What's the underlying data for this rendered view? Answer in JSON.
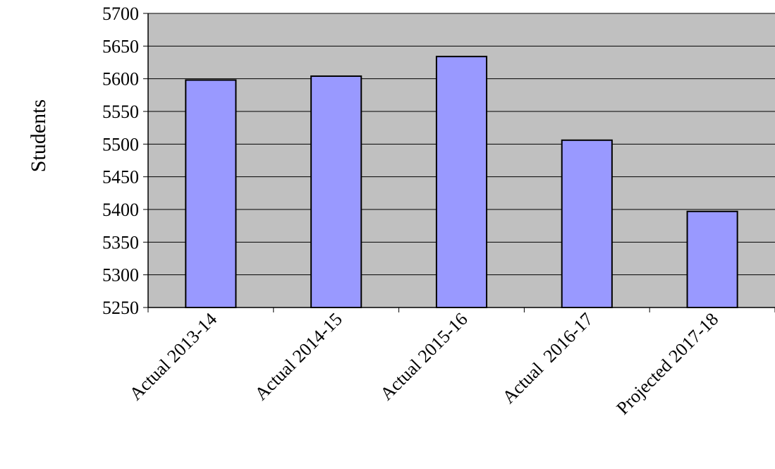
{
  "chart_data": {
    "type": "bar",
    "title": "",
    "xlabel": "",
    "ylabel": "Students",
    "categories": [
      "Actual 2013-14",
      "Actual 2014-15",
      "Actual 2015-16",
      "Actual  2016-17",
      "Projected 2017-18"
    ],
    "values": [
      5598,
      5604,
      5634,
      5506,
      5397
    ],
    "ylim": [
      5250,
      5700
    ],
    "yticks": [
      5250,
      5300,
      5350,
      5400,
      5450,
      5500,
      5550,
      5600,
      5650,
      5700
    ],
    "grid": true,
    "legend": "none",
    "colors": {
      "bar_fill": "#9999ff",
      "bar_stroke": "#000000",
      "plot_background": "#c0c0c0",
      "gridline": "#000000",
      "axis": "#000000"
    }
  }
}
